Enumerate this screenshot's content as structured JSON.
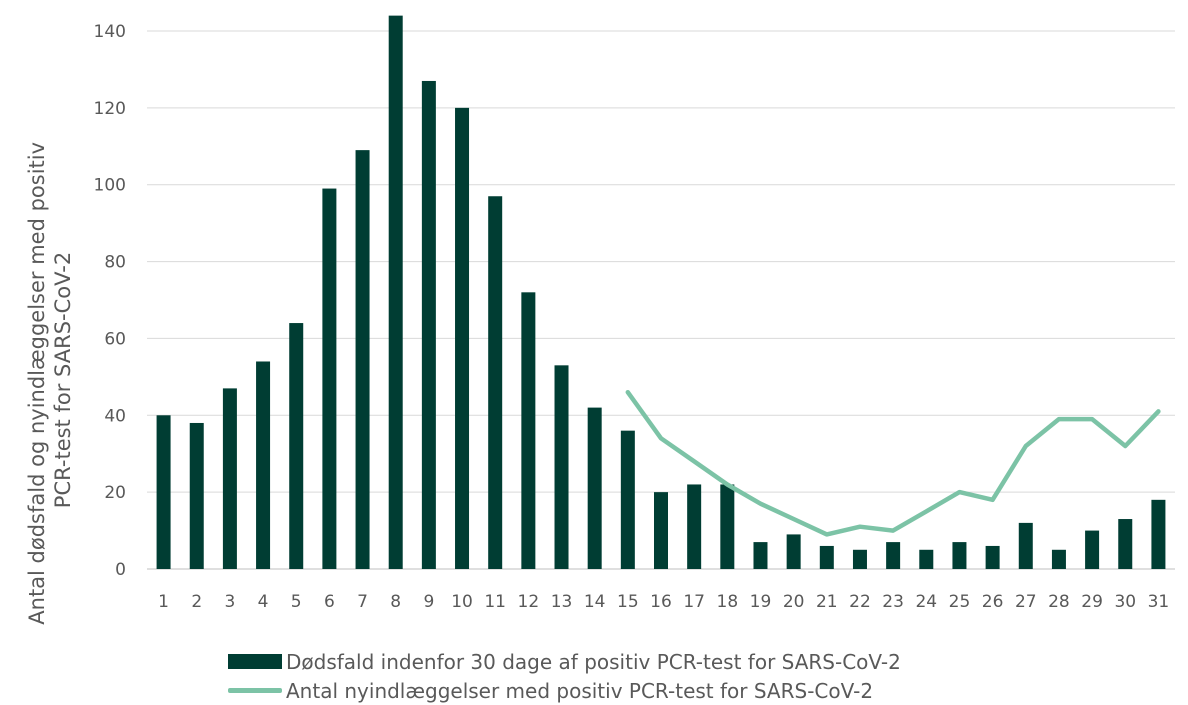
{
  "chart_data": {
    "type": "bar",
    "categories": [
      "1",
      "2",
      "3",
      "4",
      "5",
      "6",
      "7",
      "8",
      "9",
      "10",
      "11",
      "12",
      "13",
      "14",
      "15",
      "16",
      "17",
      "18",
      "19",
      "20",
      "21",
      "22",
      "23",
      "24",
      "25",
      "26",
      "27",
      "28",
      "29",
      "30",
      "31"
    ],
    "series": [
      {
        "name": "Dødsfald indenfor 30 dage af positiv PCR-test for SARS-CoV-2",
        "type": "bar",
        "color": "#003d33",
        "values": [
          40,
          38,
          47,
          54,
          64,
          99,
          109,
          144,
          127,
          120,
          97,
          72,
          53,
          42,
          36,
          20,
          22,
          22,
          7,
          9,
          6,
          5,
          7,
          5,
          7,
          6,
          12,
          5,
          10,
          13,
          18
        ]
      },
      {
        "name": "Antal nyindlæggelser med positiv PCR-test for SARS-CoV-2",
        "type": "line",
        "color": "#7cc3a6",
        "values": [
          null,
          null,
          null,
          null,
          null,
          null,
          null,
          null,
          null,
          null,
          null,
          null,
          null,
          null,
          46,
          34,
          28,
          22,
          17,
          13,
          9,
          11,
          10,
          15,
          20,
          18,
          32,
          39,
          39,
          32,
          41
        ]
      }
    ],
    "ylabel": "Antal dødsfald og nyindlæggelser med positiv PCR-test for SARS-CoV-2",
    "ylabel_lines": [
      "Antal dødsfald og nyindlæggelser med positiv",
      "PCR-test for SARS-CoV-2"
    ],
    "xlabel": "",
    "ylim": [
      0,
      140
    ],
    "yticks": [
      0,
      20,
      40,
      60,
      80,
      100,
      120,
      140
    ],
    "grid": true,
    "legend_position": "bottom"
  }
}
